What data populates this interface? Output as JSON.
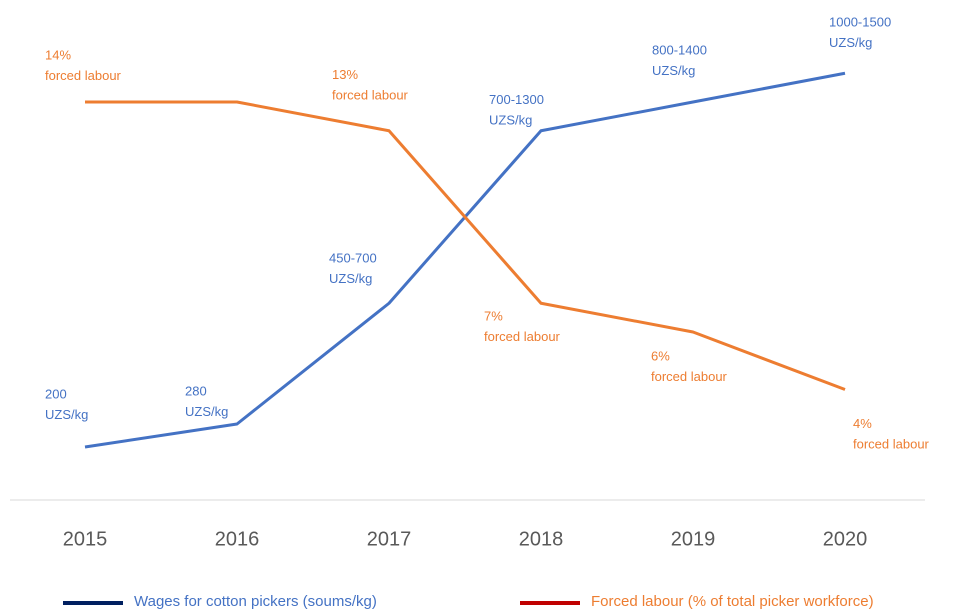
{
  "chart_data": {
    "type": "line",
    "categories": [
      "2015",
      "2016",
      "2017",
      "2018",
      "2019",
      "2020"
    ],
    "ylim": [
      0,
      1600
    ],
    "y2lim": [
      0,
      16
    ],
    "series": [
      {
        "name": "Wages for cotton pickers (soums/kg)",
        "color": "#4472c4",
        "legend_color": "#002060",
        "values": [
          200,
          280,
          700,
          1300,
          1400,
          1500
        ],
        "value_labels": [
          [
            "200",
            "UZS/kg"
          ],
          [
            "280",
            "UZS/kg"
          ],
          [
            "450-700",
            "UZS/kg"
          ],
          [
            "700-1300",
            "UZS/kg"
          ],
          [
            "800-1400",
            "UZS/kg"
          ],
          [
            "1000-1500",
            "UZS/kg"
          ]
        ]
      },
      {
        "name": "Forced labour (% of total picker workforce)",
        "color": "#ed7d31",
        "legend_color": "#c00000",
        "axis": "y2",
        "values": [
          14,
          14,
          13,
          7,
          6,
          4
        ],
        "value_labels": [
          [
            "14%",
            "forced labour"
          ],
          null,
          [
            "13%",
            "forced labour"
          ],
          [
            "7%",
            "forced labour"
          ],
          [
            "6%",
            "forced labour"
          ],
          [
            "4%",
            "forced labour"
          ]
        ]
      }
    ]
  }
}
